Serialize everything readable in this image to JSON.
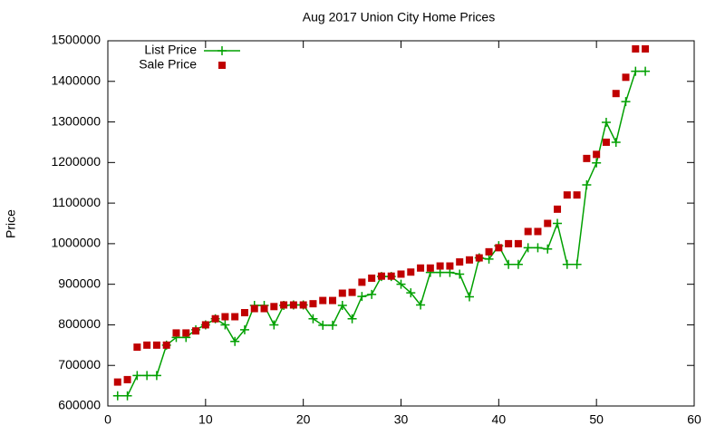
{
  "chart_data": {
    "type": "line",
    "title": "Aug 2017 Union City Home Prices",
    "ylabel": "Price",
    "x": [
      1,
      2,
      3,
      4,
      5,
      6,
      7,
      8,
      9,
      10,
      11,
      12,
      13,
      14,
      15,
      16,
      17,
      18,
      19,
      20,
      21,
      22,
      23,
      24,
      25,
      26,
      27,
      28,
      29,
      30,
      31,
      32,
      33,
      34,
      35,
      36,
      37,
      38,
      39,
      40,
      41,
      42,
      43,
      44,
      45,
      46,
      47,
      48,
      49,
      50,
      51,
      52,
      53,
      54,
      55
    ],
    "series": [
      {
        "name": "List Price",
        "color": "#00a000",
        "mode": "linespoints",
        "values": [
          625000,
          625000,
          675000,
          675000,
          675000,
          750000,
          769000,
          769000,
          788000,
          800000,
          815000,
          800000,
          759000,
          788000,
          848000,
          848000,
          800000,
          848000,
          849000,
          849000,
          815000,
          799000,
          799000,
          848000,
          815000,
          870000,
          875000,
          919000,
          919000,
          900000,
          879000,
          849000,
          929000,
          929000,
          929000,
          925000,
          869000,
          965000,
          962000,
          995000,
          949000,
          949000,
          990000,
          990000,
          987000,
          1050000,
          949000,
          949000,
          1145000,
          1199000,
          1299000,
          1250000,
          1350000,
          1425000,
          1425000
        ]
      },
      {
        "name": "Sale Price",
        "color": "#c00000",
        "mode": "points",
        "values": [
          659000,
          665000,
          745000,
          750000,
          750000,
          750000,
          780000,
          780000,
          785000,
          800000,
          815000,
          820000,
          820000,
          830000,
          840000,
          840000,
          845000,
          849000,
          849000,
          849000,
          852000,
          860000,
          860000,
          878000,
          880000,
          905000,
          915000,
          920000,
          920000,
          925000,
          930000,
          940000,
          940000,
          945000,
          945000,
          955000,
          960000,
          965000,
          980000,
          990000,
          1000000,
          1000000,
          1030000,
          1030000,
          1050000,
          1085000,
          1120000,
          1120000,
          1210000,
          1220000,
          1250000,
          1370000,
          1410000,
          1480000,
          1480000
        ]
      }
    ],
    "xlim": [
      0,
      60
    ],
    "xticks": [
      0,
      10,
      20,
      30,
      40,
      50,
      60
    ],
    "ylim": [
      600000,
      1500000
    ],
    "yticks": [
      600000,
      700000,
      800000,
      900000,
      1000000,
      1100000,
      1200000,
      1300000,
      1400000,
      1500000
    ],
    "legend": "top left"
  }
}
